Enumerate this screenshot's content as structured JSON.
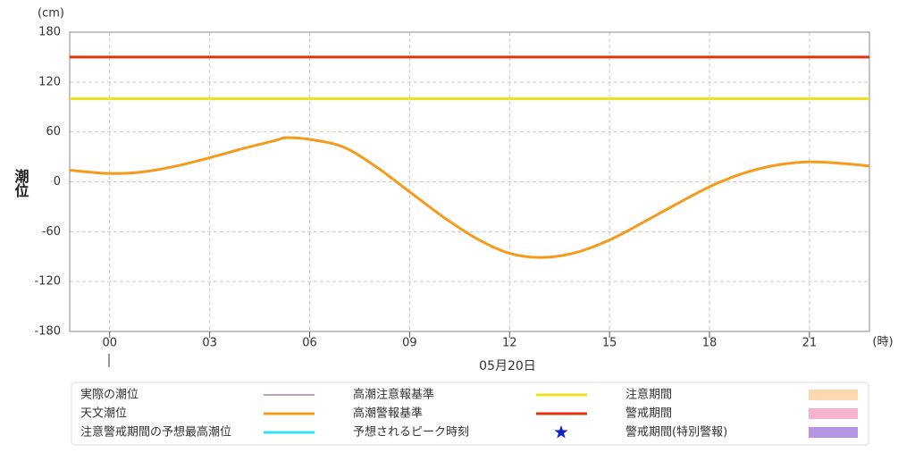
{
  "chart_data": {
    "type": "line",
    "y_unit": "(cm)",
    "x_unit": "(時)",
    "y_label": "潮位",
    "date_label": "05月20日",
    "x": [
      -1.2,
      0,
      1,
      2,
      3,
      4,
      5,
      5.3,
      6,
      7,
      8,
      9,
      10,
      11,
      12,
      13,
      14,
      15,
      16,
      17,
      18,
      19,
      20,
      21,
      22,
      22.8
    ],
    "xlim": [
      -1.2,
      22.8
    ],
    "xticks": [
      {
        "value": 0,
        "label": "00"
      },
      {
        "value": 3,
        "label": "03"
      },
      {
        "value": 6,
        "label": "06"
      },
      {
        "value": 9,
        "label": "09"
      },
      12,
      15,
      18,
      21
    ],
    "ylim": [
      -180,
      180
    ],
    "yticks": [
      180,
      120,
      60,
      0,
      -60,
      -120,
      -180
    ],
    "grid": true,
    "series": [
      {
        "name": "実際の潮位",
        "color": "#9c86b8",
        "symbol": "line"
      },
      {
        "name": "天文潮位",
        "color": "#f59a1b",
        "symbol": "line",
        "values": [
          14,
          10,
          12,
          19,
          29,
          40,
          50,
          53,
          51,
          42,
          18,
          -12,
          -42,
          -68,
          -86,
          -91,
          -85,
          -70,
          -49,
          -27,
          -6,
          10,
          20,
          24,
          22,
          19
        ]
      },
      {
        "name": "注意警戒期間の予想最高潮位",
        "color": "#33e3f2",
        "symbol": "line"
      },
      {
        "name": "高潮注意報基準",
        "color": "#f0e11e",
        "symbol": "line",
        "value": 100
      },
      {
        "name": "高潮警報基準",
        "color": "#e2330f",
        "symbol": "line",
        "value": 150
      },
      {
        "name": "予想されるピーク時刻",
        "color": "#1020c8",
        "symbol": "star"
      },
      {
        "name": "注意期間",
        "color": "#fcd8b0",
        "symbol": "area"
      },
      {
        "name": "警戒期間",
        "color": "#f8b2cb",
        "symbol": "area"
      },
      {
        "name": "警戒期間(特別警報)",
        "color": "#b396e2",
        "symbol": "area"
      }
    ]
  }
}
